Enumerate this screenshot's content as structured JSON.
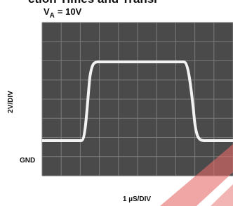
{
  "header": {
    "title": "ction Times and Transi"
  },
  "condition": {
    "label": "V",
    "subscript": "A",
    "value": "= 10V"
  },
  "scope": {
    "y_scale": "2V/DIV",
    "ground": "GND",
    "x_scale": "1 µS/DIV"
  }
}
